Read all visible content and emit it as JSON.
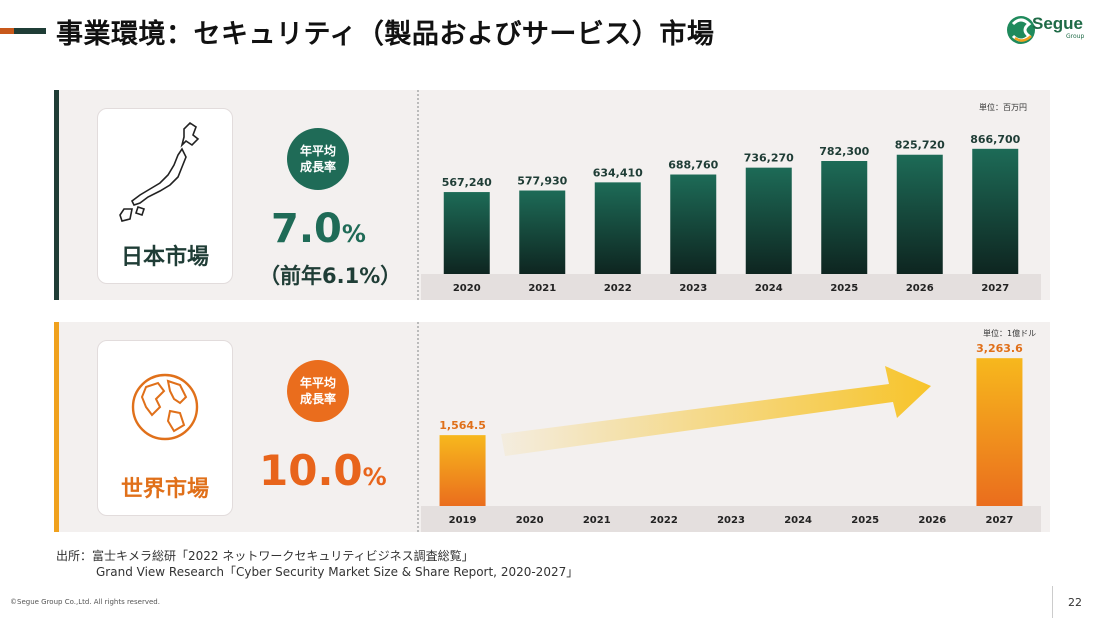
{
  "header": {
    "title": "事業環境：セキュリティ（製品およびサービス）市場",
    "logo_text": "Segue",
    "logo_sub": "Group"
  },
  "japan": {
    "label": "日本市場",
    "badge_line1": "年平均",
    "badge_line2": "成長率",
    "rate": "7.0",
    "rate_unit": "%",
    "prev_rate": "（前年6.1%）",
    "unit": "単位：百万円"
  },
  "world": {
    "label": "世界市場",
    "badge_line1": "年平均",
    "badge_line2": "成長率",
    "rate": "10.0",
    "rate_unit": "%",
    "unit": "単位：1億ドル"
  },
  "source": {
    "line1": "出所：富士キメラ総研「2022 ネットワークセキュリティビジネス調査総覧」",
    "line2": "Grand View Research「Cyber Security Market Size & Share Report, 2020-2027」"
  },
  "footer": {
    "copyright": "©Segue Group Co.,Ltd. All rights reserved.",
    "page_number": "22"
  },
  "colors": {
    "jp_bar_top": "#1d6b57",
    "jp_bar_bottom": "#0e2520",
    "ww_bar_top": "#f7b81d",
    "ww_bar_bottom": "#ea6d1d",
    "arrow": "#f7c42a"
  },
  "chart_data": [
    {
      "type": "bar",
      "title": "",
      "unit": "単位：百万円",
      "categories": [
        "2020",
        "2021",
        "2022",
        "2023",
        "2024",
        "2025",
        "2026",
        "2027"
      ],
      "values": [
        567240,
        577930,
        634410,
        688760,
        736270,
        782300,
        825720,
        866700
      ],
      "labels": [
        "567,240",
        "577,930",
        "634,410",
        "688,760",
        "736,270",
        "782,300",
        "825,720",
        "866,700"
      ],
      "ylim": [
        0,
        900000
      ],
      "grid": false
    },
    {
      "type": "bar",
      "title": "",
      "unit": "単位：1億ドル",
      "categories": [
        "2019",
        "2020",
        "2021",
        "2022",
        "2023",
        "2024",
        "2025",
        "2026",
        "2027"
      ],
      "values": [
        1564.5,
        null,
        null,
        null,
        null,
        null,
        null,
        null,
        3263.6
      ],
      "labels": [
        "1,564.5",
        "",
        "",
        "",
        "",
        "",
        "",
        "",
        "3,263.6"
      ],
      "ylim": [
        0,
        3400
      ],
      "grid": false
    }
  ]
}
